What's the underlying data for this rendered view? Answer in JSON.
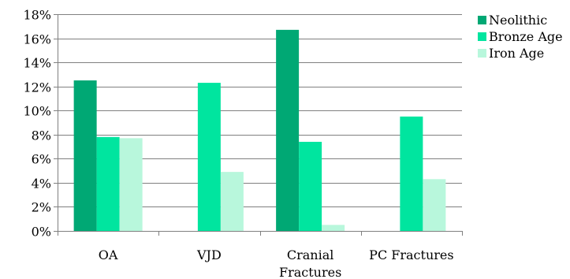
{
  "chart_data": {
    "type": "bar",
    "categories": [
      "OA",
      "VJD",
      "Cranial\nFractures",
      "PC Fractures"
    ],
    "series": [
      {
        "name": "Neolithic",
        "color": "#00a874",
        "values": [
          12.5,
          null,
          16.7,
          null
        ]
      },
      {
        "name": "Bronze Age",
        "color": "#00e59f",
        "values": [
          7.8,
          12.3,
          7.4,
          9.5
        ]
      },
      {
        "name": "Iron Age",
        "color": "#b8f7dc",
        "values": [
          7.7,
          4.9,
          0.5,
          4.3
        ]
      }
    ],
    "y_ticks": [
      "0%",
      "2%",
      "4%",
      "6%",
      "8%",
      "10%",
      "12%",
      "14%",
      "16%",
      "18%"
    ],
    "ylim": [
      0,
      18
    ],
    "grid": "horizontal",
    "legend_position": "top-right"
  }
}
